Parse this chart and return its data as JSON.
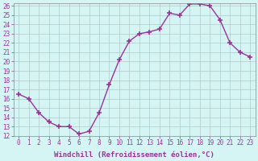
{
  "x": [
    0,
    1,
    2,
    3,
    4,
    5,
    6,
    7,
    8,
    9,
    10,
    11,
    12,
    13,
    14,
    15,
    16,
    17,
    18,
    19,
    20,
    21,
    22,
    23
  ],
  "y": [
    16.5,
    16.0,
    14.5,
    13.5,
    13.0,
    13.0,
    12.2,
    12.5,
    14.5,
    17.5,
    20.2,
    22.2,
    23.0,
    23.2,
    23.5,
    25.2,
    25.0,
    26.2,
    26.2,
    26.0,
    24.5,
    22.0,
    21.0,
    20.5
  ],
  "xlabel": "Windchill (Refroidissement éolien,°C)",
  "ylim": [
    12,
    26
  ],
  "xlim_min": -0.5,
  "xlim_max": 23.5,
  "yticks": [
    12,
    13,
    14,
    15,
    16,
    17,
    18,
    19,
    20,
    21,
    22,
    23,
    24,
    25,
    26
  ],
  "xtick_labels": [
    "0",
    "1",
    "2",
    "3",
    "4",
    "5",
    "6",
    "7",
    "8",
    "9",
    "10",
    "11",
    "12",
    "13",
    "14",
    "15",
    "16",
    "17",
    "18",
    "19",
    "20",
    "21",
    "22",
    "23"
  ],
  "line_color": "#993399",
  "bg_color": "#d5f5f5",
  "grid_color": "#b0c8c8",
  "marker": "+",
  "markersize": 4,
  "markeredgewidth": 1.2,
  "linewidth": 1.0,
  "xlabel_fontsize": 6.5,
  "tick_fontsize": 5.5,
  "ytick_fontsize": 5.5
}
